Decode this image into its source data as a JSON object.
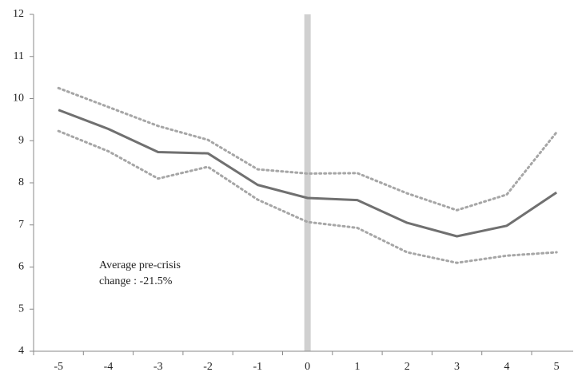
{
  "chart_data": {
    "type": "line",
    "categories": [
      "-5",
      "-4",
      "-3",
      "-2",
      "-1",
      "0",
      "1",
      "2",
      "3",
      "4",
      "5"
    ],
    "series": [
      {
        "color": "#707070",
        "style": "solid",
        "values": [
          9.73,
          9.28,
          8.73,
          8.7,
          7.95,
          7.64,
          7.59,
          7.05,
          6.73,
          6.98,
          7.77
        ]
      },
      {
        "color": "#a6a6a6",
        "style": "dotted",
        "values": [
          10.25,
          9.8,
          9.35,
          9.02,
          8.32,
          8.22,
          8.23,
          7.75,
          7.35,
          7.72,
          9.2
        ]
      },
      {
        "color": "#a6a6a6",
        "style": "dotted",
        "values": [
          9.23,
          8.75,
          8.1,
          8.38,
          7.6,
          7.07,
          6.93,
          6.35,
          6.1,
          6.27,
          6.35
        ]
      }
    ],
    "ylim": [
      4,
      12
    ],
    "yticks": [
      4,
      5,
      6,
      7,
      8,
      9,
      10,
      11,
      12
    ],
    "band_at": "0",
    "annotation": [
      "Average pre-crisis",
      "change : -21.5%"
    ],
    "grid": false
  }
}
